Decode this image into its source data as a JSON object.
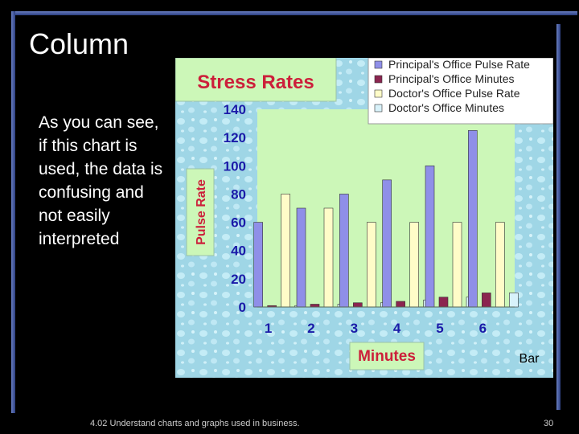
{
  "slide": {
    "title": "Column",
    "body": "As you can see, if this chart is used, the data is confusing and not easily interpreted",
    "footer": "4.02 Understand charts and graphs used in business.",
    "page_number": "30"
  },
  "colors": {
    "background": "#000000",
    "accent_bar": "#4a5fa8",
    "plot_area": "#ccf7b8",
    "chart_background": "#9fd6e6",
    "title_box": "#ccf7b8",
    "title_text": "#cc1f3a",
    "axis_text": "#1a1aa8"
  },
  "chart_data": {
    "type": "bar",
    "title": "Stress Rates",
    "xlabel": "Minutes",
    "ylabel": "Pulse Rate",
    "corner_label": "Bar",
    "categories": [
      "1",
      "2",
      "3",
      "4",
      "5",
      "6"
    ],
    "ylim": [
      0,
      140
    ],
    "yticks": [
      "0",
      "20",
      "40",
      "60",
      "80",
      "100",
      "120",
      "140"
    ],
    "grid": false,
    "legend_position": "top-right",
    "series": [
      {
        "name": "Principal's Office Pulse Rate",
        "values": [
          60,
          70,
          80,
          90,
          100,
          125
        ],
        "color": "#8f8fe8"
      },
      {
        "name": "Principal's Office Minutes",
        "values": [
          1,
          2,
          3,
          4,
          7,
          10
        ],
        "color": "#8b2550"
      },
      {
        "name": "Doctor's Office Pulse Rate",
        "values": [
          80,
          70,
          60,
          60,
          60,
          60
        ],
        "color": "#fffcc8"
      },
      {
        "name": "Doctor's Office Minutes",
        "values": [
          1,
          2,
          3,
          5,
          7,
          10
        ],
        "color": "#d8f2fa"
      }
    ]
  }
}
